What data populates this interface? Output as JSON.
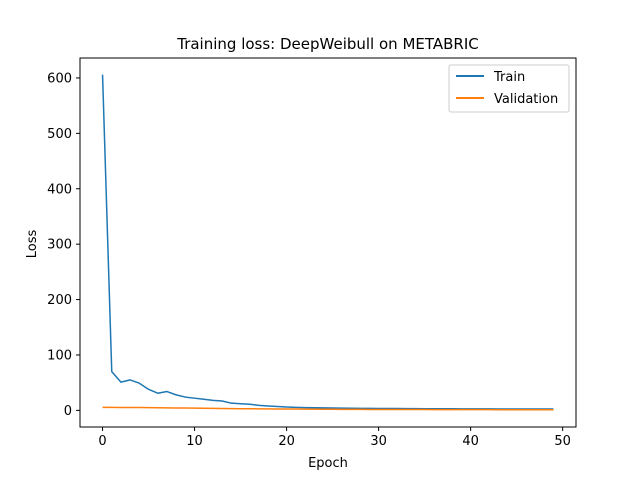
{
  "chart_data": {
    "type": "line",
    "title": "Training loss: DeepWeibull on METABRIC",
    "xlabel": "Epoch",
    "ylabel": "Loss",
    "xlim": [
      -2.45,
      51.45
    ],
    "ylim": [
      -30,
      636
    ],
    "xticks": [
      0,
      10,
      20,
      30,
      40,
      50
    ],
    "yticks": [
      0,
      100,
      200,
      300,
      400,
      500,
      600
    ],
    "grid": false,
    "legend_position": "top-right",
    "x": [
      0,
      1,
      2,
      3,
      4,
      5,
      6,
      7,
      8,
      9,
      10,
      11,
      12,
      13,
      14,
      15,
      16,
      17,
      18,
      19,
      20,
      21,
      22,
      23,
      24,
      25,
      26,
      27,
      28,
      29,
      30,
      31,
      32,
      33,
      34,
      35,
      36,
      37,
      38,
      39,
      40,
      41,
      42,
      43,
      44,
      45,
      46,
      47,
      48,
      49
    ],
    "series": [
      {
        "name": "Train",
        "color": "#1f77b4",
        "values": [
          606,
          70,
          51,
          55,
          49,
          38,
          31,
          34,
          28,
          24,
          22,
          20,
          18,
          17,
          13,
          12,
          11,
          9,
          8,
          7,
          6,
          5.5,
          5,
          4.8,
          4.5,
          4.2,
          4,
          3.8,
          3.7,
          3.6,
          3.5,
          3.4,
          3.3,
          3.2,
          3.1,
          3.0,
          3.0,
          2.9,
          2.9,
          2.8,
          2.8,
          2.7,
          2.7,
          2.6,
          2.6,
          2.5,
          2.5,
          2.5,
          2.4,
          2.4
        ]
      },
      {
        "name": "Validation",
        "color": "#ff7f0e",
        "values": [
          5.5,
          5.4,
          5.3,
          5.2,
          5.1,
          5.0,
          4.8,
          4.6,
          4.4,
          4.2,
          4.0,
          3.8,
          3.6,
          3.4,
          3.2,
          3.0,
          2.9,
          2.8,
          2.7,
          2.6,
          2.5,
          2.4,
          2.3,
          2.2,
          2.1,
          2.0,
          1.9,
          1.8,
          1.8,
          1.7,
          1.7,
          1.6,
          1.6,
          1.5,
          1.5,
          1.5,
          1.4,
          1.4,
          1.4,
          1.3,
          1.3,
          1.3,
          1.3,
          1.2,
          1.2,
          1.2,
          1.2,
          1.1,
          1.1,
          1.1
        ]
      }
    ]
  }
}
